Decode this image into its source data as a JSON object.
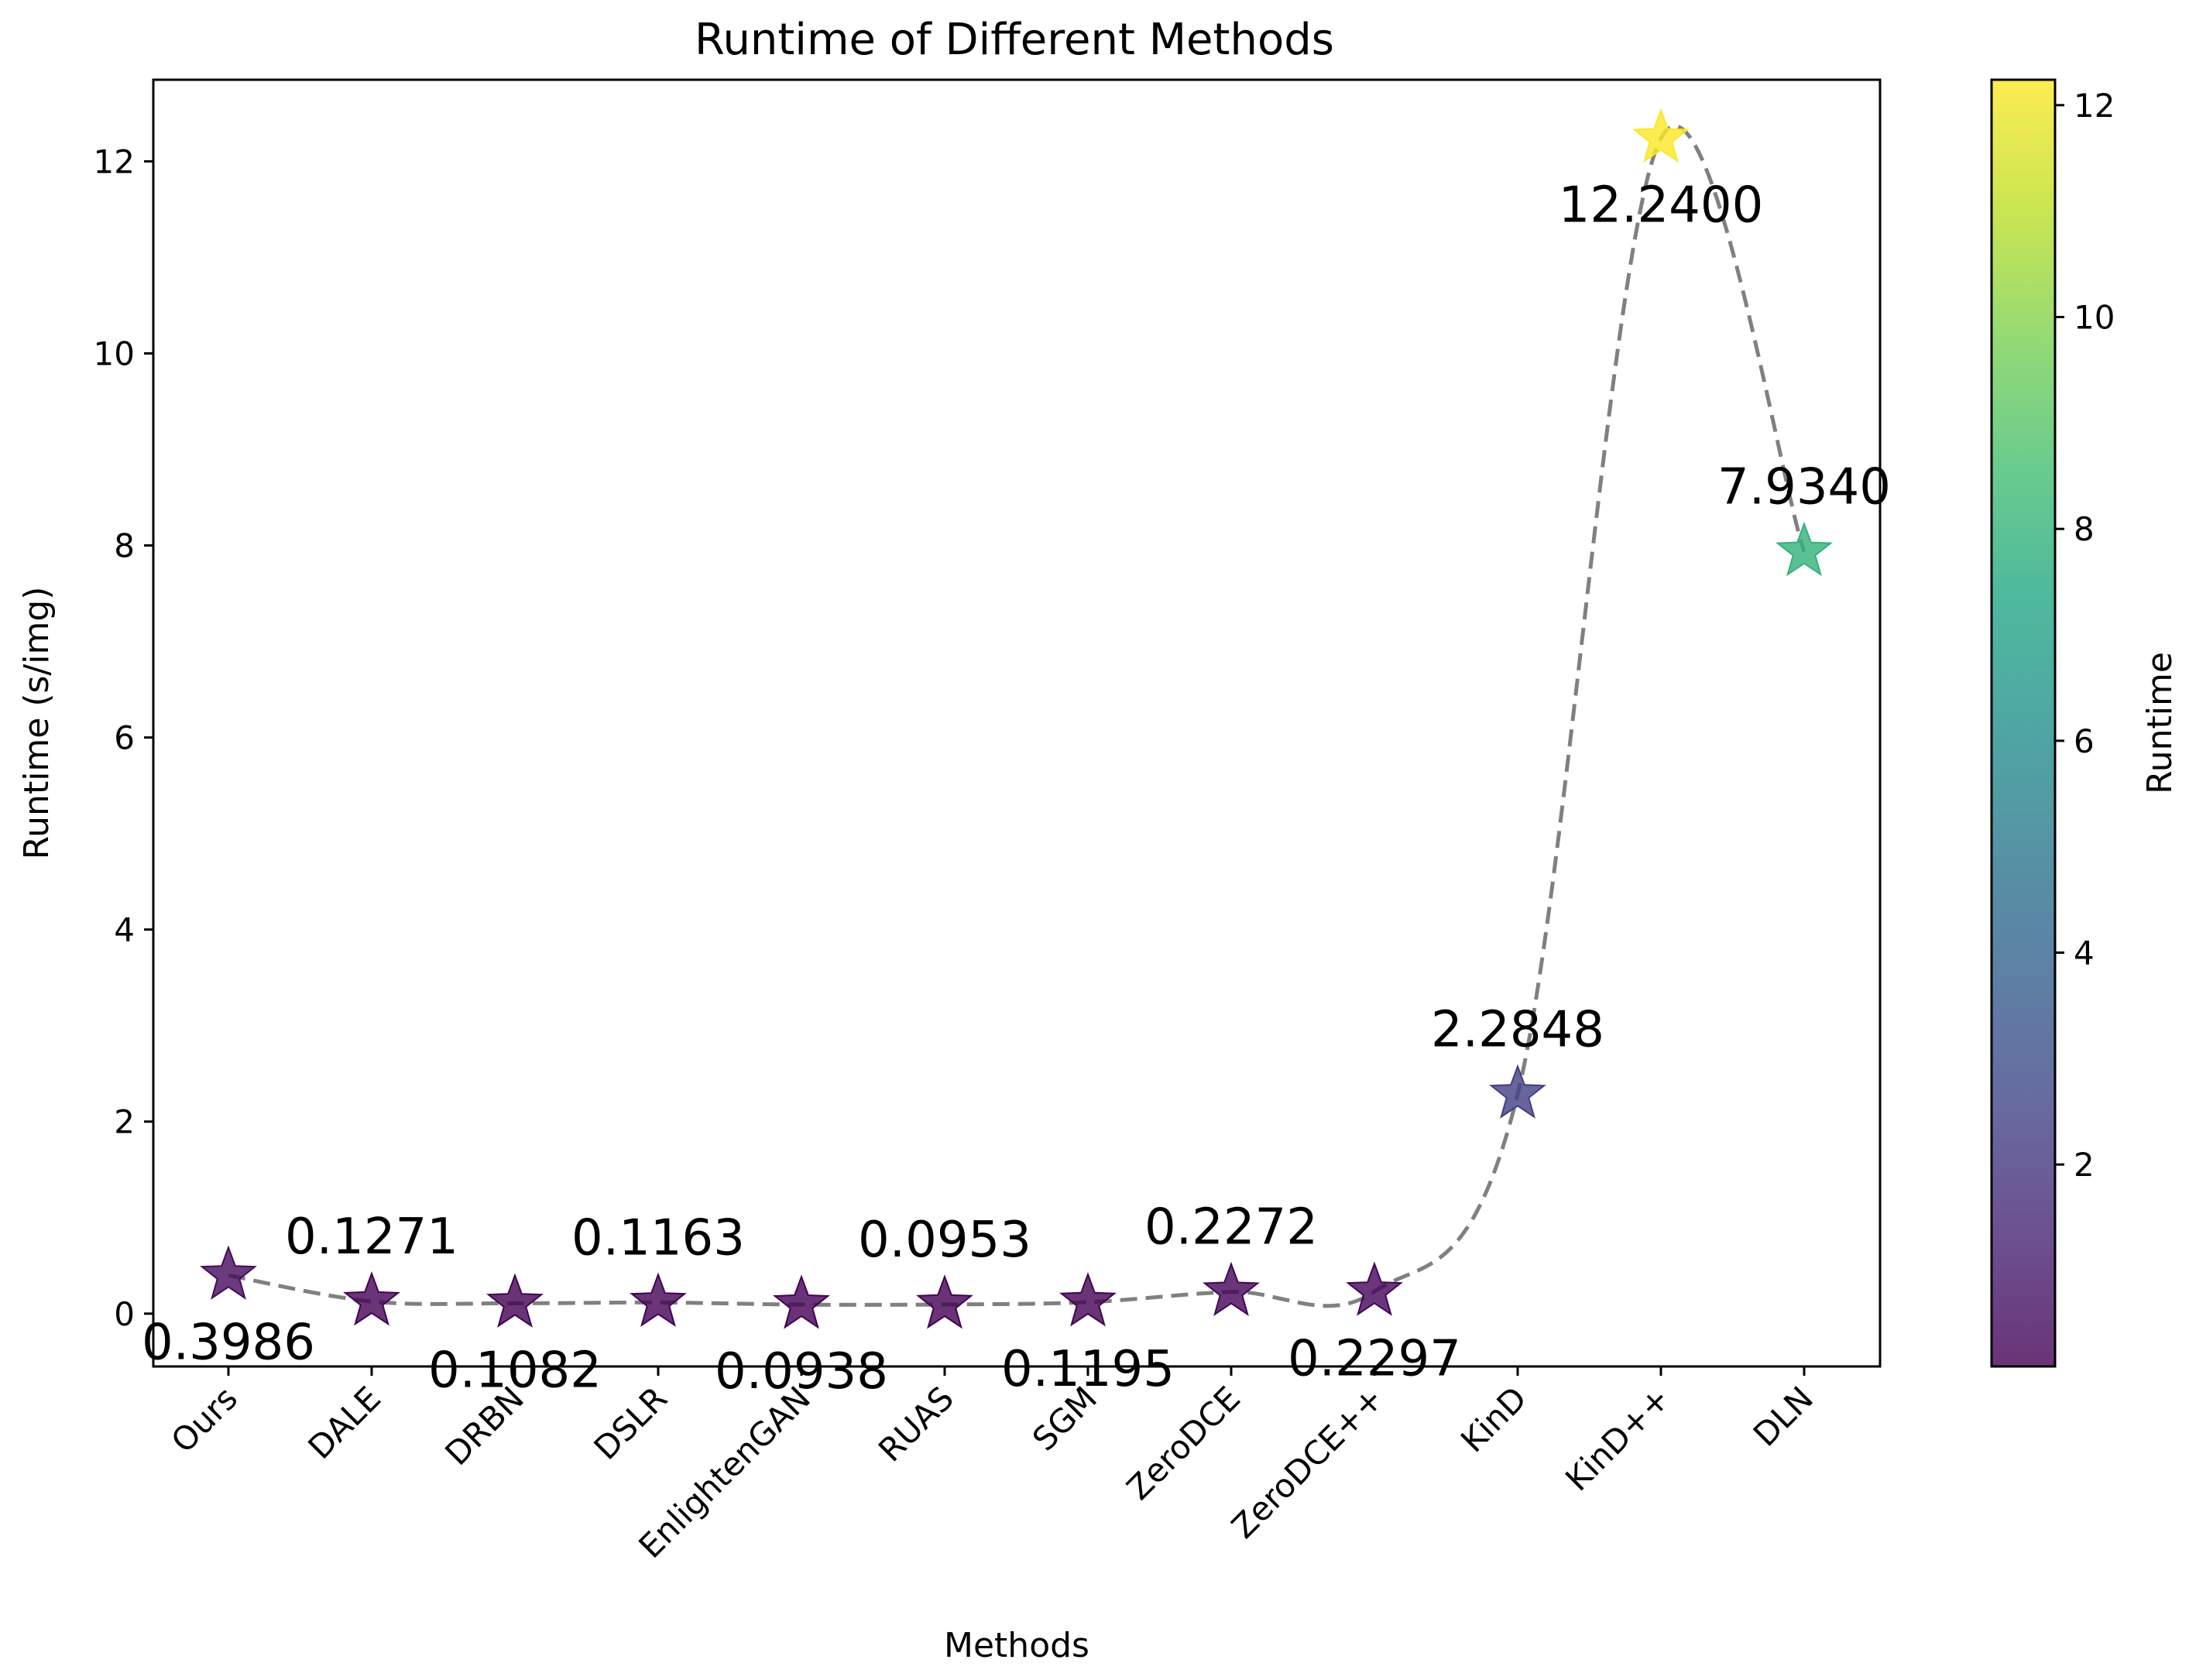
{
  "chart_data": {
    "type": "scatter",
    "title": "Runtime of Different Methods",
    "xlabel": "Methods",
    "ylabel": "Runtime (s/img)",
    "ylim": [
      -0.55,
      12.85
    ],
    "yticks": [
      0,
      2,
      4,
      6,
      8,
      10,
      12
    ],
    "categories": [
      "Ours",
      "DALE",
      "DRBN",
      "DSLR",
      "EnlightenGAN",
      "RUAS",
      "SGM",
      "ZeroDCE",
      "ZeroDCE++",
      "KinD",
      "KinD++",
      "DLN"
    ],
    "values": [
      0.3986,
      0.1271,
      0.1082,
      0.1163,
      0.0938,
      0.0953,
      0.1195,
      0.2272,
      0.2297,
      2.2848,
      12.24,
      7.934
    ],
    "data_labels": [
      "0.3986",
      "0.1271",
      "0.1082",
      "0.1163",
      "0.0938",
      "0.0953",
      "0.1195",
      "0.2272",
      "0.2297",
      "2.2848",
      "12.2400",
      "7.9340"
    ],
    "label_positions": [
      "below",
      "above",
      "below",
      "above",
      "below",
      "above",
      "below",
      "above",
      "below",
      "above",
      "below",
      "above"
    ],
    "marker": "star",
    "line_style": "dashed",
    "line_color": "#808080",
    "colormap": "viridis",
    "colorbar": {
      "label": "Runtime",
      "range": [
        0.0938,
        12.24
      ],
      "ticks": [
        2,
        4,
        6,
        8,
        10,
        12
      ]
    },
    "grid": false,
    "legend": "none"
  }
}
